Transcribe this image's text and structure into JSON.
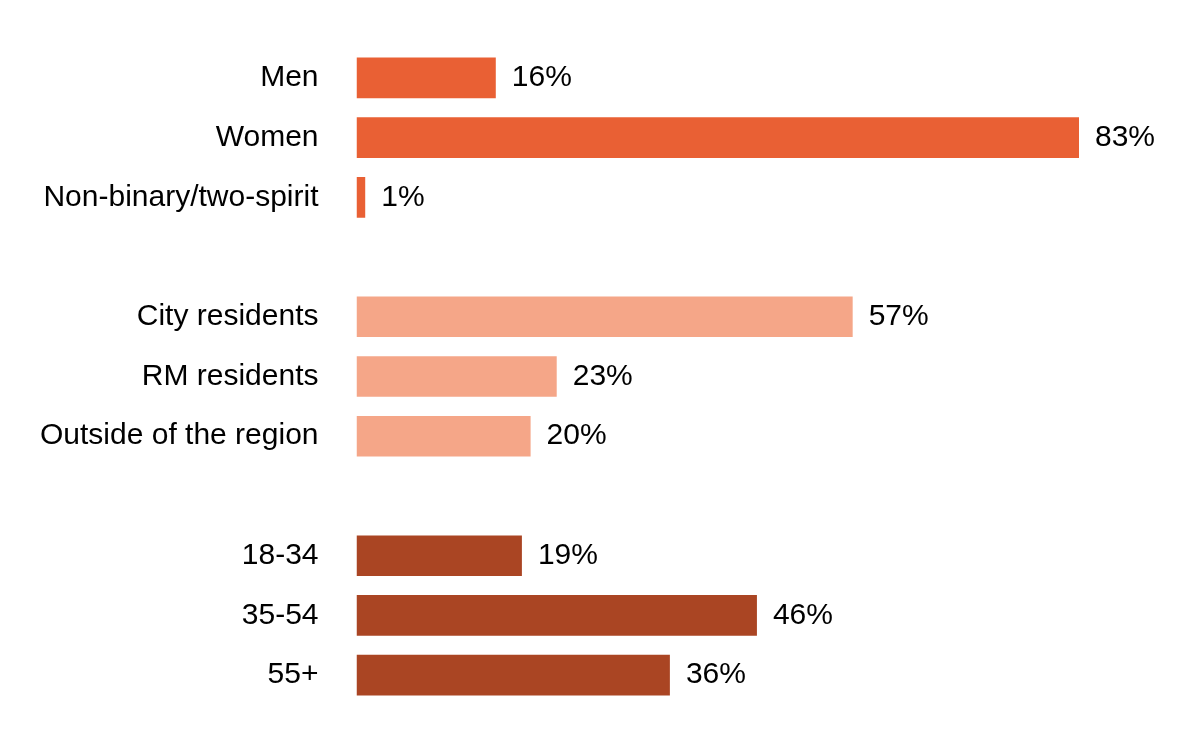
{
  "chart_data": {
    "type": "bar",
    "orientation": "horizontal",
    "categories": [
      "Men",
      "Women",
      "Non-binary/two-spirit",
      null,
      "City residents",
      "RM residents",
      "Outside of the region",
      null,
      "18-34",
      "35-54",
      "55+"
    ],
    "values": [
      16,
      83,
      1,
      null,
      57,
      23,
      20,
      null,
      19,
      46,
      36
    ],
    "colors": [
      "#e96034",
      "#e96034",
      "#e96034",
      "#ffffff",
      "#f5a688",
      "#f5a688",
      "#f5a688",
      "#ffffff",
      "#aa4523",
      "#aa4523",
      "#aa4523"
    ],
    "value_labels": [
      "16%",
      "83%",
      "1%",
      null,
      "57%",
      "23%",
      "20%",
      null,
      "19%",
      "46%",
      "36%"
    ],
    "legend": false
  }
}
